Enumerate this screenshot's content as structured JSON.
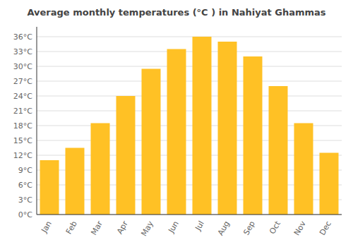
{
  "chart_data": {
    "type": "bar",
    "title": "Average monthly temperatures (°C ) in Nahiyat Ghammas",
    "categories": [
      "Jan",
      "Feb",
      "Mar",
      "Apr",
      "May",
      "Jun",
      "Jul",
      "Aug",
      "Sep",
      "Oct",
      "Nov",
      "Dec"
    ],
    "values": [
      11,
      13.5,
      18.5,
      24,
      29.5,
      33.5,
      36,
      35,
      32,
      26,
      18.5,
      12.5
    ],
    "color": "#FFC125",
    "ylim": [
      0,
      38
    ],
    "yticks": [
      {
        "value": 0,
        "label": "0°C"
      },
      {
        "value": 3,
        "label": "3°C"
      },
      {
        "value": 6,
        "label": "6°C"
      },
      {
        "value": 9,
        "label": "9°C"
      },
      {
        "value": 12,
        "label": "12°C"
      },
      {
        "value": 15,
        "label": "15°C"
      },
      {
        "value": 18,
        "label": "18°C"
      },
      {
        "value": 21,
        "label": "21°C"
      },
      {
        "value": 24,
        "label": "24°C"
      },
      {
        "value": 27,
        "label": "27°C"
      },
      {
        "value": 30,
        "label": "30°C"
      },
      {
        "value": 33,
        "label": "33°C"
      },
      {
        "value": 36,
        "label": "36°C"
      }
    ],
    "grid": true
  }
}
